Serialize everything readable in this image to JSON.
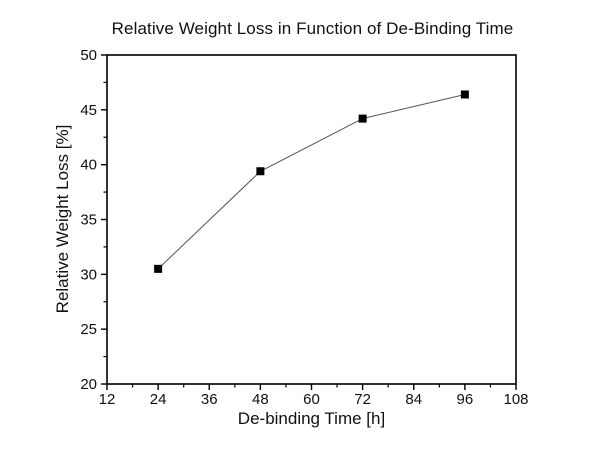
{
  "title": "Relative Weight Loss in Function of De-Binding Time",
  "colors": {
    "background": "#ffffff",
    "axis": "#000000",
    "tick_label": "#111111",
    "series_line": "#555555",
    "marker": "#000000"
  },
  "chart_data": {
    "type": "line",
    "title": "Relative Weight Loss in Function of De-Binding Time",
    "xlabel": "De-binding Time [h]",
    "ylabel": "Relative Weight Loss [%]",
    "series": [
      {
        "name": "Relative Weight Loss",
        "x": [
          24,
          48,
          72,
          96
        ],
        "y": [
          30.5,
          39.4,
          44.2,
          46.4
        ]
      }
    ],
    "xlim": [
      12,
      108
    ],
    "ylim": [
      20,
      50
    ],
    "x_major_ticks": [
      12,
      24,
      36,
      48,
      60,
      72,
      84,
      96,
      108
    ],
    "y_major_ticks": [
      20,
      25,
      30,
      35,
      40,
      45,
      50
    ],
    "x_minor_step": 6,
    "y_minor_step": 2.5,
    "grid": false,
    "legend": "none",
    "marker": "filled-square",
    "marker_size_px": 8,
    "tick_direction": "out"
  }
}
